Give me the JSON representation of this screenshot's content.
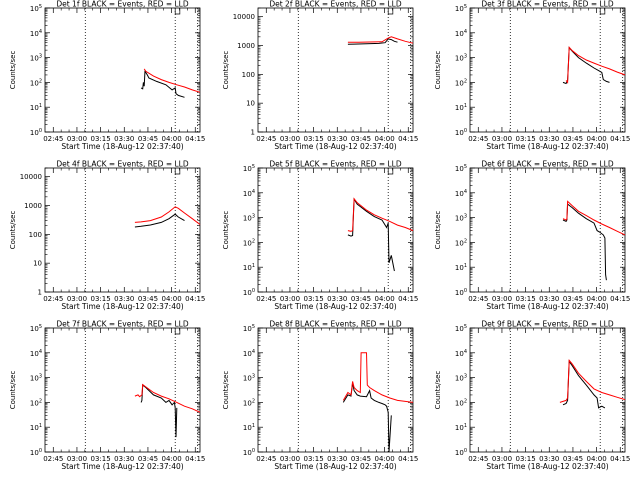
{
  "xticks": [
    "02:45",
    "03:00",
    "03:15",
    "03:30",
    "03:45",
    "04:00",
    "04:15"
  ],
  "xlabel": "Start Time (18-Aug-12 02:37:40)",
  "ylabel": "Counts/sec",
  "colors": {
    "events": "#000000",
    "lld": "#ff0000",
    "axes": "#000000"
  },
  "chart_data": [
    {
      "type": "line",
      "title": "Det 1f BLACK = Events, RED = LLD",
      "log_scale": true,
      "ylim": [
        1,
        100000
      ],
      "yticks": [
        {
          "v": 1,
          "b": "10",
          "e": "0"
        },
        {
          "v": 10,
          "b": "10",
          "e": "1"
        },
        {
          "v": 100,
          "b": "10",
          "e": "2"
        },
        {
          "v": 1000,
          "b": "10",
          "e": "3"
        },
        {
          "v": 10000,
          "b": "10",
          "e": "4"
        },
        {
          "v": 100000,
          "b": "10",
          "e": "5"
        }
      ],
      "series": [
        {
          "name": "Events",
          "color": "#000000",
          "x": [
            0.62,
            0.63,
            0.635,
            0.64,
            0.645,
            0.65,
            0.66,
            0.67,
            0.72,
            0.78,
            0.82,
            0.84,
            0.845,
            0.86,
            0.9
          ],
          "y": [
            60,
            55,
            100,
            70,
            300,
            250,
            200,
            150,
            110,
            80,
            50,
            60,
            35,
            30,
            25
          ]
        },
        {
          "name": "LLD",
          "color": "#ff0000",
          "x": [
            0.64,
            0.65,
            0.7,
            0.75,
            0.8,
            0.85,
            0.9,
            0.95,
            1.0
          ],
          "y": [
            350,
            280,
            180,
            130,
            100,
            80,
            65,
            50,
            40
          ]
        }
      ],
      "vlines": [
        0.26,
        0.84,
        0.985
      ],
      "range_marks": [
        0.84,
        0.87
      ]
    },
    {
      "type": "line",
      "title": "Det 2f BLACK = Events, RED = LLD",
      "log_scale": true,
      "ylim": [
        1,
        20000
      ],
      "yticks": [
        {
          "v": 1,
          "t": "1"
        },
        {
          "v": 10,
          "t": "10"
        },
        {
          "v": 100,
          "t": "100"
        },
        {
          "v": 1000,
          "t": "1000"
        },
        {
          "v": 10000,
          "t": "10000"
        }
      ],
      "series": [
        {
          "name": "Events",
          "color": "#000000",
          "x": [
            0.58,
            0.62,
            0.7,
            0.78,
            0.82,
            0.84,
            0.86,
            0.88,
            0.9
          ],
          "y": [
            1100,
            1120,
            1150,
            1180,
            1250,
            1700,
            1600,
            1400,
            1300
          ]
        },
        {
          "name": "LLD",
          "color": "#ff0000",
          "x": [
            0.58,
            0.65,
            0.72,
            0.8,
            0.84,
            0.86,
            0.9,
            0.95,
            1.0
          ],
          "y": [
            1300,
            1300,
            1320,
            1350,
            1800,
            2000,
            1700,
            1400,
            1200
          ]
        }
      ],
      "vlines": [
        0.26,
        0.84,
        0.985
      ],
      "range_marks": [
        0.84,
        0.87
      ]
    },
    {
      "type": "line",
      "title": "Det 3f BLACK = Events, RED = LLD",
      "log_scale": true,
      "ylim": [
        1,
        100000
      ],
      "yticks": [
        {
          "v": 1,
          "b": "10",
          "e": "0"
        },
        {
          "v": 10,
          "b": "10",
          "e": "1"
        },
        {
          "v": 100,
          "b": "10",
          "e": "2"
        },
        {
          "v": 1000,
          "b": "10",
          "e": "3"
        },
        {
          "v": 10000,
          "b": "10",
          "e": "4"
        },
        {
          "v": 100000,
          "b": "10",
          "e": "5"
        }
      ],
      "series": [
        {
          "name": "Events",
          "color": "#000000",
          "x": [
            0.6,
            0.62,
            0.63,
            0.64,
            0.66,
            0.7,
            0.75,
            0.8,
            0.83,
            0.85,
            0.86,
            0.88,
            0.9
          ],
          "y": [
            100,
            90,
            120,
            2500,
            1800,
            1000,
            600,
            380,
            300,
            250,
            130,
            110,
            100
          ]
        },
        {
          "name": "LLD",
          "color": "#ff0000",
          "x": [
            0.62,
            0.63,
            0.64,
            0.66,
            0.7,
            0.75,
            0.8,
            0.85,
            0.9,
            0.95,
            1.0
          ],
          "y": [
            120,
            100,
            2600,
            1900,
            1200,
            800,
            600,
            450,
            350,
            260,
            200
          ]
        }
      ],
      "vlines": [
        0.26,
        0.84,
        0.985
      ],
      "range_marks": [
        0.84,
        0.87
      ]
    },
    {
      "type": "line",
      "title": "Det 4f BLACK = Events, RED = LLD",
      "log_scale": true,
      "ylim": [
        1,
        20000
      ],
      "yticks": [
        {
          "v": 1,
          "t": "1"
        },
        {
          "v": 10,
          "t": "10"
        },
        {
          "v": 100,
          "t": "100"
        },
        {
          "v": 1000,
          "t": "1000"
        },
        {
          "v": 10000,
          "t": "10000"
        }
      ],
      "series": [
        {
          "name": "Events",
          "color": "#000000",
          "x": [
            0.58,
            0.62,
            0.68,
            0.75,
            0.8,
            0.84,
            0.86,
            0.9
          ],
          "y": [
            180,
            190,
            210,
            260,
            350,
            500,
            400,
            300
          ]
        },
        {
          "name": "LLD",
          "color": "#ff0000",
          "x": [
            0.58,
            0.62,
            0.68,
            0.75,
            0.8,
            0.84,
            0.86,
            0.9,
            0.95,
            1.0
          ],
          "y": [
            260,
            270,
            300,
            400,
            600,
            900,
            800,
            550,
            350,
            220
          ]
        }
      ],
      "vlines": [
        0.26,
        0.84,
        0.985
      ],
      "range_marks": [
        0.84,
        0.87
      ]
    },
    {
      "type": "line",
      "title": "Det 5f BLACK = Events, RED = LLD",
      "log_scale": true,
      "ylim": [
        1,
        100000
      ],
      "yticks": [
        {
          "v": 1,
          "b": "10",
          "e": "0"
        },
        {
          "v": 10,
          "b": "10",
          "e": "1"
        },
        {
          "v": 100,
          "b": "10",
          "e": "2"
        },
        {
          "v": 1000,
          "b": "10",
          "e": "3"
        },
        {
          "v": 10000,
          "b": "10",
          "e": "4"
        },
        {
          "v": 100000,
          "b": "10",
          "e": "5"
        }
      ],
      "series": [
        {
          "name": "Events",
          "color": "#000000",
          "x": [
            0.58,
            0.6,
            0.61,
            0.62,
            0.64,
            0.7,
            0.75,
            0.8,
            0.83,
            0.84,
            0.845,
            0.86,
            0.88
          ],
          "y": [
            200,
            180,
            190,
            5500,
            3500,
            1800,
            1100,
            800,
            400,
            600,
            15,
            30,
            7
          ]
        },
        {
          "name": "LLD",
          "color": "#ff0000",
          "x": [
            0.58,
            0.6,
            0.61,
            0.62,
            0.64,
            0.7,
            0.75,
            0.8,
            0.85,
            0.9,
            0.95,
            1.0
          ],
          "y": [
            300,
            280,
            300,
            5800,
            4000,
            2000,
            1300,
            950,
            700,
            500,
            400,
            300
          ]
        }
      ],
      "vlines": [
        0.26,
        0.84,
        0.985
      ],
      "range_marks": [
        0.84,
        0.87
      ]
    },
    {
      "type": "line",
      "title": "Det 6f BLACK = Events, RED = LLD",
      "log_scale": true,
      "ylim": [
        1,
        100000
      ],
      "yticks": [
        {
          "v": 1,
          "b": "10",
          "e": "0"
        },
        {
          "v": 10,
          "b": "10",
          "e": "1"
        },
        {
          "v": 100,
          "b": "10",
          "e": "2"
        },
        {
          "v": 1000,
          "b": "10",
          "e": "3"
        },
        {
          "v": 10000,
          "b": "10",
          "e": "4"
        },
        {
          "v": 100000,
          "b": "10",
          "e": "5"
        }
      ],
      "series": [
        {
          "name": "Events",
          "color": "#000000",
          "x": [
            0.6,
            0.62,
            0.625,
            0.63,
            0.66,
            0.7,
            0.75,
            0.8,
            0.82,
            0.84,
            0.86,
            0.87,
            0.875,
            0.88
          ],
          "y": [
            800,
            700,
            800,
            3500,
            2500,
            1500,
            900,
            600,
            300,
            250,
            200,
            150,
            5,
            3
          ]
        },
        {
          "name": "LLD",
          "color": "#ff0000",
          "x": [
            0.6,
            0.62,
            0.625,
            0.63,
            0.66,
            0.7,
            0.75,
            0.8,
            0.85,
            0.9,
            0.95,
            1.0
          ],
          "y": [
            900,
            800,
            900,
            4500,
            3000,
            1800,
            1200,
            800,
            550,
            400,
            280,
            200
          ]
        }
      ],
      "vlines": [
        0.26,
        0.84,
        0.985
      ],
      "range_marks": [
        0.84,
        0.87
      ]
    },
    {
      "type": "line",
      "title": "Det 7f BLACK = Events, RED = LLD",
      "log_scale": true,
      "ylim": [
        1,
        100000
      ],
      "yticks": [
        {
          "v": 1,
          "b": "10",
          "e": "0"
        },
        {
          "v": 10,
          "b": "10",
          "e": "1"
        },
        {
          "v": 100,
          "b": "10",
          "e": "2"
        },
        {
          "v": 1000,
          "b": "10",
          "e": "3"
        },
        {
          "v": 10000,
          "b": "10",
          "e": "4"
        },
        {
          "v": 100000,
          "b": "10",
          "e": "5"
        }
      ],
      "series": [
        {
          "name": "Events",
          "color": "#000000",
          "x": [
            0.62,
            0.625,
            0.63,
            0.65,
            0.7,
            0.75,
            0.78,
            0.8,
            0.82,
            0.835,
            0.84,
            0.845,
            0.85
          ],
          "y": [
            100,
            120,
            500,
            400,
            200,
            150,
            100,
            120,
            80,
            100,
            60,
            4,
            60
          ]
        },
        {
          "name": "LLD",
          "color": "#ff0000",
          "x": [
            0.58,
            0.6,
            0.61,
            0.62,
            0.625,
            0.63,
            0.65,
            0.7,
            0.75,
            0.8,
            0.85,
            0.9,
            0.95,
            1.0
          ],
          "y": [
            180,
            200,
            170,
            190,
            200,
            520,
            420,
            250,
            180,
            140,
            100,
            70,
            55,
            40
          ]
        }
      ],
      "vlines": [
        0.26,
        0.84,
        0.985
      ],
      "range_marks": [
        0.84,
        0.87
      ]
    },
    {
      "type": "line",
      "title": "Det 8f BLACK = Events, RED = LLD",
      "log_scale": true,
      "ylim": [
        1,
        100000
      ],
      "yticks": [
        {
          "v": 1,
          "b": "10",
          "e": "0"
        },
        {
          "v": 10,
          "b": "10",
          "e": "1"
        },
        {
          "v": 100,
          "b": "10",
          "e": "2"
        },
        {
          "v": 1000,
          "b": "10",
          "e": "3"
        },
        {
          "v": 10000,
          "b": "10",
          "e": "4"
        },
        {
          "v": 100000,
          "b": "10",
          "e": "5"
        }
      ],
      "series": [
        {
          "name": "Events",
          "color": "#000000",
          "x": [
            0.55,
            0.58,
            0.6,
            0.61,
            0.62,
            0.64,
            0.66,
            0.7,
            0.72,
            0.73,
            0.75,
            0.78,
            0.8,
            0.82,
            0.83,
            0.84,
            0.845,
            0.86
          ],
          "y": [
            100,
            200,
            180,
            600,
            300,
            200,
            180,
            170,
            300,
            150,
            120,
            100,
            90,
            80,
            70,
            40,
            1,
            30
          ]
        },
        {
          "name": "LLD",
          "color": "#ff0000",
          "x": [
            0.55,
            0.58,
            0.6,
            0.61,
            0.62,
            0.64,
            0.66,
            0.665,
            0.7,
            0.705,
            0.72,
            0.75,
            0.8,
            0.85,
            0.9,
            0.95,
            1.0
          ],
          "y": [
            120,
            250,
            200,
            700,
            400,
            300,
            250,
            10000,
            10000,
            500,
            400,
            300,
            200,
            150,
            120,
            110,
            100
          ]
        }
      ],
      "vlines": [
        0.26,
        0.84,
        0.985
      ],
      "range_marks": [
        0.84,
        0.87
      ]
    },
    {
      "type": "line",
      "title": "Det 9f BLACK = Events, RED = LLD",
      "log_scale": true,
      "ylim": [
        1,
        100000
      ],
      "yticks": [
        {
          "v": 1,
          "b": "10",
          "e": "0"
        },
        {
          "v": 10,
          "b": "10",
          "e": "1"
        },
        {
          "v": 100,
          "b": "10",
          "e": "2"
        },
        {
          "v": 1000,
          "b": "10",
          "e": "3"
        },
        {
          "v": 10000,
          "b": "10",
          "e": "4"
        },
        {
          "v": 100000,
          "b": "10",
          "e": "5"
        }
      ],
      "series": [
        {
          "name": "Events",
          "color": "#000000",
          "x": [
            0.6,
            0.62,
            0.63,
            0.64,
            0.66,
            0.7,
            0.75,
            0.8,
            0.82,
            0.83,
            0.85,
            0.87
          ],
          "y": [
            80,
            90,
            120,
            4500,
            3000,
            1200,
            500,
            200,
            150,
            60,
            70,
            60
          ]
        },
        {
          "name": "LLD",
          "color": "#ff0000",
          "x": [
            0.58,
            0.6,
            0.62,
            0.63,
            0.64,
            0.66,
            0.7,
            0.75,
            0.8,
            0.85,
            0.9,
            0.95,
            1.0
          ],
          "y": [
            100,
            110,
            120,
            150,
            5000,
            3500,
            1500,
            700,
            350,
            250,
            200,
            160,
            130
          ]
        }
      ],
      "vlines": [
        0.26,
        0.84,
        0.985
      ],
      "range_marks": [
        0.84,
        0.87
      ]
    }
  ]
}
